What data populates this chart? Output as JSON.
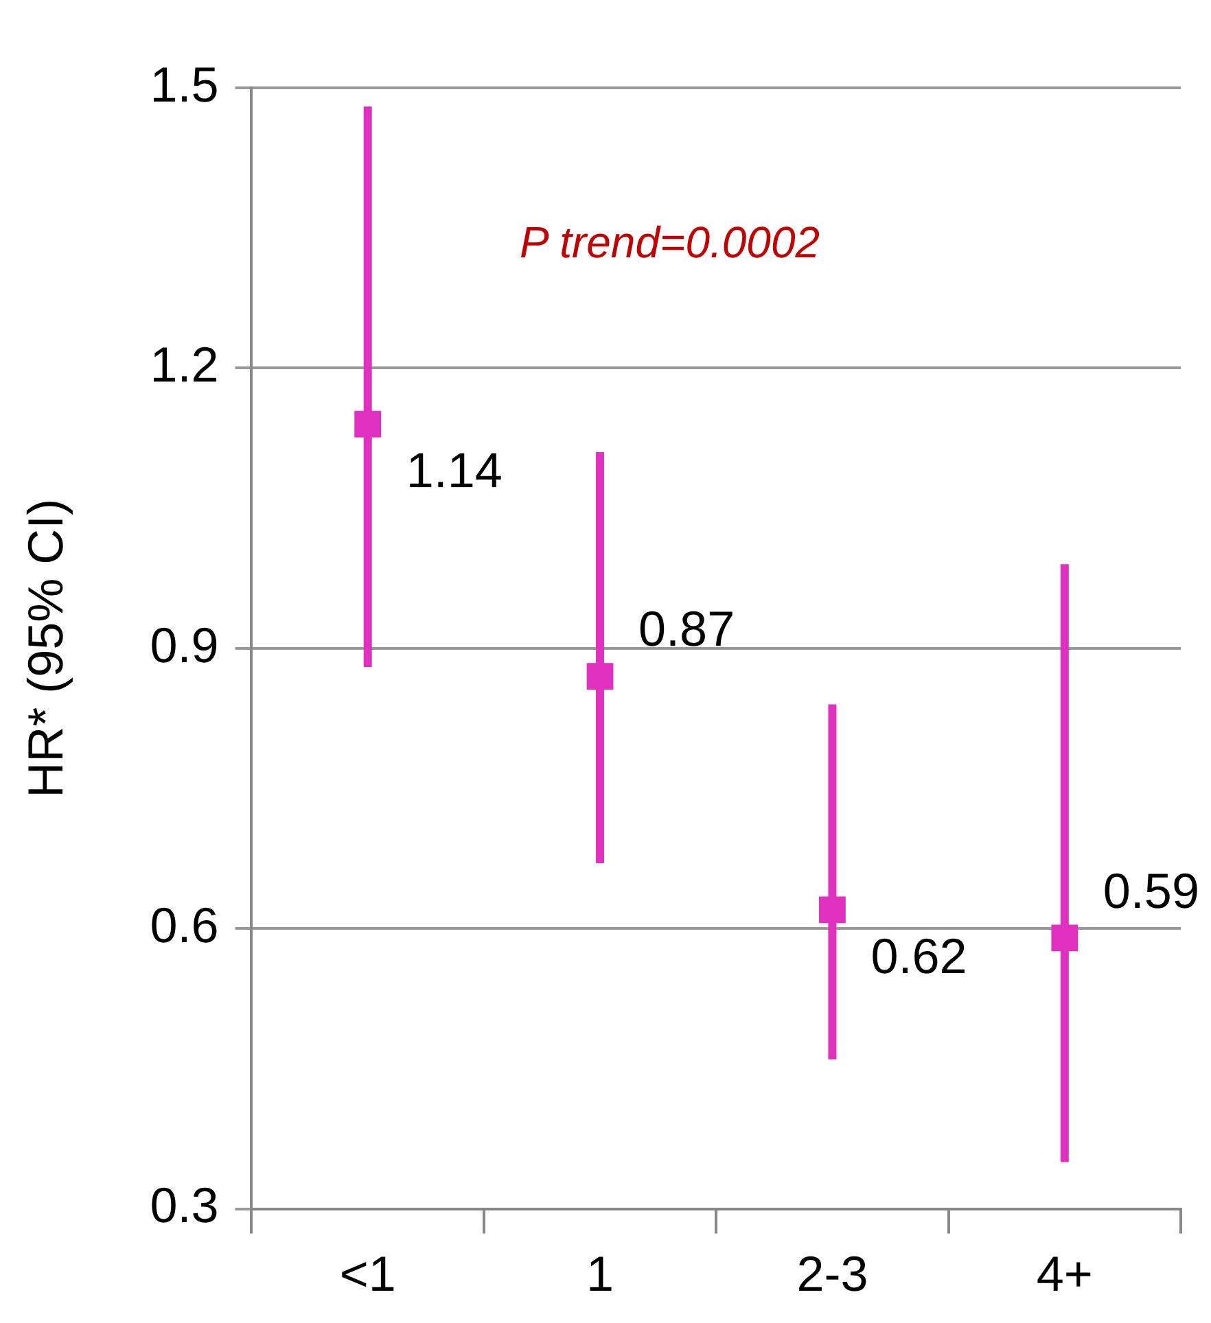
{
  "chart_data": {
    "type": "scatter",
    "ylabel": "HR* (95% CI)",
    "categories": [
      "<1",
      "1",
      "2-3",
      "4+"
    ],
    "series": [
      {
        "color": "#e030c0",
        "values": [
          1.14,
          0.87,
          0.62,
          0.59
        ],
        "errors": [
          [
            0.88,
            1.48
          ],
          [
            0.67,
            1.11
          ],
          [
            0.46,
            0.84
          ],
          [
            0.35,
            0.99
          ]
        ]
      }
    ],
    "ylim": [
      0.3,
      1.5
    ],
    "yticks": [
      0.3,
      0.6,
      0.9,
      1.2,
      1.5
    ],
    "grid": "y",
    "legend": false,
    "marker": "square",
    "data_labels": true,
    "annotations": [
      "P trend=0.0002"
    ]
  }
}
